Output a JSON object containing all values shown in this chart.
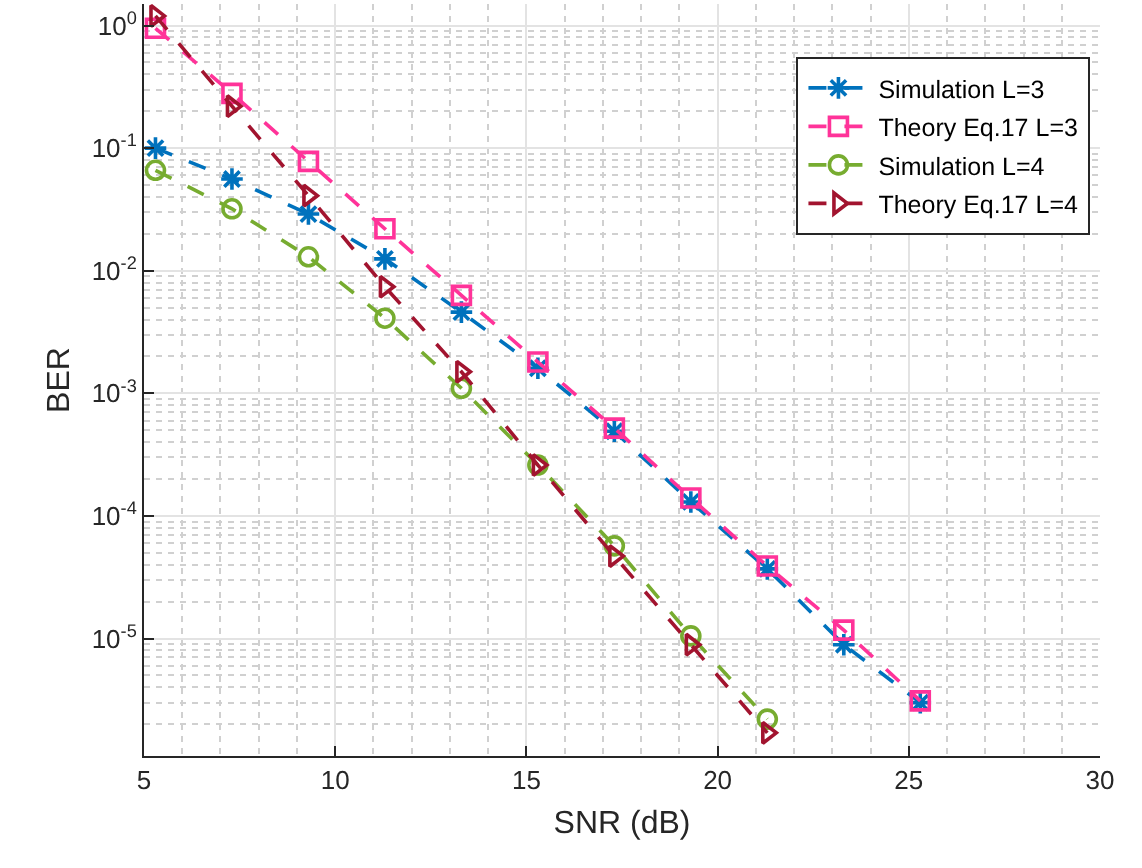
{
  "chart_data": {
    "type": "line",
    "xlabel": "SNR (dB)",
    "ylabel": "BER",
    "log": "y",
    "grid": true,
    "legend": "top right",
    "line_style": "dashed",
    "xlim": [
      5,
      30
    ],
    "xticks": [
      5,
      10,
      15,
      20,
      25,
      30
    ],
    "ylim": [
      1.1e-06,
      1.5
    ],
    "yticks": [
      {
        "value": 1,
        "label": "10$^{0}$"
      },
      {
        "value": 0.1,
        "label": "10$^{-1}$"
      },
      {
        "value": 0.01,
        "label": "10$^{-2}$"
      },
      {
        "value": 0.001,
        "label": "10$^{-3}$"
      },
      {
        "value": 0.0001,
        "label": "10$^{-4}$"
      },
      {
        "value": 1e-05,
        "label": "10$^{-5}$"
      }
    ],
    "x": [
      5.3,
      7.3,
      9.3,
      11.3,
      13.3,
      15.3,
      17.3,
      19.3,
      21.3,
      23.3,
      25.3
    ],
    "series": [
      {
        "name": "Simulation L=3",
        "color": "#0072bd",
        "marker": "cross",
        "values": [
          0.1,
          0.056,
          0.029,
          0.0125,
          0.0046,
          0.0016,
          0.00049,
          0.00013,
          3.7e-05,
          8.9e-06,
          3e-06
        ]
      },
      {
        "name": "Theory Eq.17 L=3",
        "color": "#ff3399",
        "marker": "square",
        "values": [
          0.95,
          0.28,
          0.078,
          0.022,
          0.0063,
          0.0018,
          0.00052,
          0.00014,
          3.9e-05,
          1.17e-05,
          3.1e-06
        ]
      },
      {
        "name": "Simulation L=4",
        "color": "#77ac30",
        "marker": "circle",
        "values": [
          0.066,
          0.032,
          0.013,
          0.0041,
          0.0011,
          0.00026,
          5.7e-05,
          1.05e-05,
          2.2e-06,
          null,
          null
        ]
      },
      {
        "name": "Theory Eq.17 L=4",
        "color": "#a2142f",
        "marker": "triangle",
        "values": [
          1.2,
          0.22,
          0.041,
          0.0074,
          0.0015,
          0.00026,
          4.7e-05,
          8.9e-06,
          1.7e-06,
          null,
          null
        ]
      }
    ]
  }
}
